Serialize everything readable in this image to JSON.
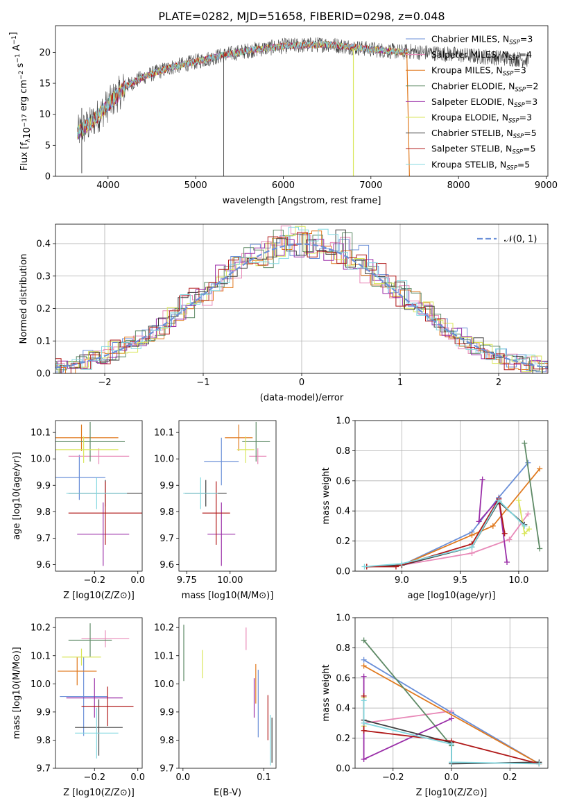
{
  "title": "PLATE=0282, MJD=51658, FIBERID=0298, z=0.048",
  "series": [
    {
      "name": "Chabrier MILES",
      "nssp": "3",
      "color": "#6a8fd8"
    },
    {
      "name": "Salpeter MILES",
      "nssp": "4",
      "color": "#e889b8"
    },
    {
      "name": "Kroupa MILES",
      "nssp": "3",
      "color": "#e0791e"
    },
    {
      "name": "Chabrier ELODIE",
      "nssp": "2",
      "color": "#5e8a66"
    },
    {
      "name": "Salpeter ELODIE",
      "nssp": "3",
      "color": "#9a2ea8"
    },
    {
      "name": "Kroupa ELODIE",
      "nssp": "3",
      "color": "#d9e65a"
    },
    {
      "name": "Chabrier STELIB",
      "nssp": "5",
      "color": "#3e3e3e"
    },
    {
      "name": "Salpeter STELIB",
      "nssp": "5",
      "color": "#b01818"
    },
    {
      "name": "Kroupa STELIB",
      "nssp": "5",
      "color": "#82d8e0"
    }
  ],
  "chart_data": [
    {
      "id": "spectrum",
      "type": "line",
      "title": "PLATE=0282, MJD=51658, FIBERID=0298, z=0.048",
      "xlabel": "wavelength [Angstrom, rest frame]",
      "ylabel": "Flux [f_λ 10^-17 erg cm^-2 s^-1 A^-1]",
      "xlim": [
        3400,
        9020
      ],
      "ylim": [
        0,
        24.3
      ],
      "xticks": [
        4000,
        5000,
        6000,
        7000,
        8000,
        9000
      ],
      "yticks": [
        0,
        5,
        10,
        15,
        20
      ],
      "continuum": {
        "x": [
          3650,
          3800,
          4000,
          4200,
          4400,
          4700,
          5000,
          5300,
          5600,
          6000,
          6500,
          7000,
          7400
        ],
        "y": [
          7.0,
          8.5,
          11.5,
          14.5,
          16.0,
          17.5,
          18.5,
          19.5,
          20.3,
          21.0,
          21.3,
          20.5,
          20.0
        ]
      },
      "legend": "upper right"
    },
    {
      "id": "residuals",
      "type": "line",
      "xlabel": "(data-model)/error",
      "ylabel": "Normed distribution",
      "xlim": [
        -2.5,
        2.5
      ],
      "ylim": [
        0,
        0.46
      ],
      "xticks": [
        -2,
        -1,
        0,
        1,
        2
      ],
      "yticks": [
        0.0,
        0.1,
        0.2,
        0.3,
        0.4
      ],
      "reference": {
        "name": "N(0,1)",
        "color": "#6a8fd8",
        "style": "dashed"
      },
      "grid": true,
      "legend": "upper right"
    },
    {
      "id": "age-vs-Z",
      "type": "scatter",
      "xlabel": "Z [log10(Z/Z⊙)]",
      "ylabel": "age [log10(age/yr)]",
      "xlim": [
        -0.38,
        0.02
      ],
      "ylim": [
        9.575,
        10.145
      ],
      "xticks": [
        -0.2,
        0.0
      ],
      "yticks": [
        9.6,
        9.7,
        9.8,
        9.9,
        10.0,
        10.1
      ],
      "points": [
        {
          "s": 0,
          "x": -0.27,
          "xerr": 0.12,
          "y": 9.93,
          "yerr": 0.085
        },
        {
          "s": 1,
          "x": -0.18,
          "xerr": 0.14,
          "y": 10.01,
          "yerr": 0.03
        },
        {
          "s": 2,
          "x": -0.26,
          "xerr": 0.17,
          "y": 10.08,
          "yerr": 0.05
        },
        {
          "s": 3,
          "x": -0.22,
          "xerr": 0.16,
          "y": 10.065,
          "yerr": 0.075
        },
        {
          "s": 4,
          "x": -0.16,
          "xerr": 0.12,
          "y": 9.715,
          "yerr": 0.12
        },
        {
          "s": 5,
          "x": -0.25,
          "xerr": 0.16,
          "y": 10.035,
          "yerr": 0.05
        },
        {
          "s": 6,
          "x": -0.15,
          "xerr": 0.17,
          "y": 9.87,
          "yerr": 0.05
        },
        {
          "s": 7,
          "x": -0.15,
          "xerr": 0.17,
          "y": 9.795,
          "yerr": 0.12
        },
        {
          "s": 8,
          "x": -0.19,
          "xerr": 0.14,
          "y": 9.87,
          "yerr": 0.06
        }
      ]
    },
    {
      "id": "age-vs-mass",
      "type": "scatter",
      "xlabel": "mass [log10(M/M⊙)]",
      "ylabel": "",
      "xlim": [
        9.705,
        10.265
      ],
      "ylim": [
        9.575,
        10.145
      ],
      "xticks": [
        9.75,
        10.0
      ],
      "yticks": [
        9.6,
        9.7,
        9.8,
        9.9,
        10.0,
        10.1
      ],
      "points": [
        {
          "s": 0,
          "x": 9.95,
          "xerr": 0.1,
          "y": 9.99,
          "yerr": 0.09
        },
        {
          "s": 1,
          "x": 10.16,
          "xerr": 0.05,
          "y": 10.01,
          "yerr": 0.03
        },
        {
          "s": 2,
          "x": 10.05,
          "xerr": 0.08,
          "y": 10.08,
          "yerr": 0.05
        },
        {
          "s": 3,
          "x": 10.15,
          "xerr": 0.08,
          "y": 10.065,
          "yerr": 0.075
        },
        {
          "s": 4,
          "x": 9.95,
          "xerr": 0.08,
          "y": 9.715,
          "yerr": 0.12
        },
        {
          "s": 5,
          "x": 10.09,
          "xerr": 0.05,
          "y": 10.035,
          "yerr": 0.05
        },
        {
          "s": 6,
          "x": 9.86,
          "xerr": 0.12,
          "y": 9.87,
          "yerr": 0.05
        },
        {
          "s": 7,
          "x": 9.92,
          "xerr": 0.08,
          "y": 9.795,
          "yerr": 0.12
        },
        {
          "s": 8,
          "x": 9.83,
          "xerr": 0.1,
          "y": 9.87,
          "yerr": 0.06
        }
      ]
    },
    {
      "id": "weight-vs-age",
      "type": "line",
      "xlabel": "age [log10(age/yr)]",
      "ylabel": "mass weight",
      "xlim": [
        8.6,
        10.25
      ],
      "ylim": [
        0,
        1.0
      ],
      "xticks": [
        9.0,
        9.5,
        10.0
      ],
      "yticks": [
        0.0,
        0.2,
        0.4,
        0.6,
        0.8,
        1.0
      ],
      "grid": true,
      "lines": [
        {
          "s": 0,
          "x": [
            8.7,
            9.0,
            9.6,
            9.83,
            10.08
          ],
          "y": [
            0.03,
            0.04,
            0.26,
            0.49,
            0.72
          ]
        },
        {
          "s": 1,
          "x": [
            8.7,
            9.0,
            9.6,
            9.92,
            10.08
          ],
          "y": [
            0.03,
            0.04,
            0.12,
            0.21,
            0.38
          ]
        },
        {
          "s": 2,
          "x": [
            8.7,
            9.0,
            9.6,
            9.78,
            10.18
          ],
          "y": [
            0.03,
            0.04,
            0.24,
            0.3,
            0.68
          ]
        },
        {
          "s": 3,
          "x": [
            10.05,
            10.18
          ],
          "y": [
            0.85,
            0.15
          ]
        },
        {
          "s": 4,
          "x": [
            9.69,
            9.66,
            9.83,
            9.9
          ],
          "y": [
            0.61,
            0.33,
            0.48,
            0.06
          ]
        },
        {
          "s": 5,
          "x": [
            10.0,
            10.05,
            10.09
          ],
          "y": [
            0.47,
            0.25,
            0.28
          ]
        },
        {
          "s": 6,
          "x": [
            8.7,
            9.0,
            9.6,
            9.83,
            10.05
          ],
          "y": [
            0.03,
            0.04,
            0.16,
            0.46,
            0.31
          ]
        },
        {
          "s": 7,
          "x": [
            8.7,
            8.95,
            9.6,
            9.83,
            9.88
          ],
          "y": [
            0.03,
            0.03,
            0.18,
            0.48,
            0.25
          ]
        },
        {
          "s": 8,
          "x": [
            8.68,
            9.0,
            9.6,
            9.83,
            10.05
          ],
          "y": [
            0.03,
            0.05,
            0.16,
            0.47,
            0.3
          ]
        }
      ]
    },
    {
      "id": "mass-vs-Z",
      "type": "scatter",
      "xlabel": "Z [log10(Z/Z⊙)]",
      "ylabel": "mass [log10(M/M⊙)]",
      "xlim": [
        -0.38,
        0.02
      ],
      "ylim": [
        9.7,
        10.235
      ],
      "xticks": [
        -0.2,
        0.0
      ],
      "yticks": [
        9.7,
        9.8,
        9.9,
        10.0,
        10.1,
        10.2
      ],
      "points": [
        {
          "s": 0,
          "x": -0.25,
          "xerr": 0.11,
          "y": 9.955,
          "yerr": 0.14
        },
        {
          "s": 1,
          "x": -0.15,
          "xerr": 0.11,
          "y": 10.16,
          "yerr": 0.03
        },
        {
          "s": 2,
          "x": -0.28,
          "xerr": 0.09,
          "y": 10.045,
          "yerr": 0.05
        },
        {
          "s": 3,
          "x": -0.22,
          "xerr": 0.1,
          "y": 10.155,
          "yerr": 0.06
        },
        {
          "s": 4,
          "x": -0.2,
          "xerr": 0.13,
          "y": 9.95,
          "yerr": 0.07
        },
        {
          "s": 5,
          "x": -0.26,
          "xerr": 0.09,
          "y": 10.095,
          "yerr": 0.03
        },
        {
          "s": 6,
          "x": -0.18,
          "xerr": 0.11,
          "y": 9.845,
          "yerr": 0.1
        },
        {
          "s": 7,
          "x": -0.14,
          "xerr": 0.12,
          "y": 9.92,
          "yerr": 0.07
        },
        {
          "s": 8,
          "x": -0.19,
          "xerr": 0.1,
          "y": 9.825,
          "yerr": 0.09
        }
      ]
    },
    {
      "id": "mass-vs-ebv",
      "type": "scatter",
      "xlabel": "E(B-V)",
      "ylabel": "",
      "xlim": [
        -0.005,
        0.115
      ],
      "ylim": [
        9.7,
        10.235
      ],
      "xticks": [
        0.0,
        0.1
      ],
      "yticks": [
        9.7,
        9.8,
        9.9,
        10.0,
        10.1,
        10.2
      ],
      "points": [
        {
          "s": 0,
          "x": 0.093,
          "xerr": 0,
          "y": 9.93,
          "yerr": 0.12
        },
        {
          "s": 1,
          "x": 0.078,
          "xerr": 0,
          "y": 10.16,
          "yerr": 0.04
        },
        {
          "s": 2,
          "x": 0.09,
          "xerr": 0,
          "y": 10.0,
          "yerr": 0.07
        },
        {
          "s": 3,
          "x": 0.001,
          "xerr": 0,
          "y": 10.11,
          "yerr": 0.1
        },
        {
          "s": 4,
          "x": 0.088,
          "xerr": 0,
          "y": 9.95,
          "yerr": 0.07
        },
        {
          "s": 5,
          "x": 0.024,
          "xerr": 0,
          "y": 10.07,
          "yerr": 0.05
        },
        {
          "s": 6,
          "x": 0.11,
          "xerr": 0,
          "y": 9.8,
          "yerr": 0.08
        },
        {
          "s": 7,
          "x": 0.105,
          "xerr": 0,
          "y": 9.88,
          "yerr": 0.08
        },
        {
          "s": 8,
          "x": 0.108,
          "xerr": 0,
          "y": 9.8,
          "yerr": 0.09
        }
      ]
    },
    {
      "id": "weight-vs-Z",
      "type": "line",
      "xlabel": "Z [log10(Z/Z⊙)]",
      "ylabel": "mass weight",
      "xlim": [
        -0.33,
        0.33
      ],
      "ylim": [
        0,
        1.0
      ],
      "xticks": [
        -0.2,
        0.0,
        0.2
      ],
      "yticks": [
        0.0,
        0.2,
        0.4,
        0.6,
        0.8,
        1.0
      ],
      "grid": true,
      "lines": [
        {
          "s": 0,
          "x": [
            -0.3,
            0.0,
            0.3
          ],
          "y": [
            0.72,
            0.37,
            0.03
          ]
        },
        {
          "s": 1,
          "x": [
            -0.3,
            0.0
          ],
          "y": [
            0.3,
            0.38
          ]
        },
        {
          "s": 2,
          "x": [
            -0.3,
            0.3
          ],
          "y": [
            0.68,
            0.03
          ]
        },
        {
          "s": 3,
          "x": [
            -0.3,
            0.0
          ],
          "y": [
            0.85,
            0.15
          ]
        },
        {
          "s": 4,
          "x": [
            -0.3,
            -0.3,
            0.0
          ],
          "y": [
            0.61,
            0.06,
            0.33
          ]
        },
        {
          "s": 5,
          "x": [
            -0.3,
            -0.3
          ],
          "y": [
            0.47,
            0.28
          ]
        },
        {
          "s": 6,
          "x": [
            -0.3,
            0.0,
            0.0,
            0.3
          ],
          "y": [
            0.32,
            0.17,
            0.03,
            0.04
          ]
        },
        {
          "s": 7,
          "x": [
            -0.3,
            -0.3,
            0.0,
            0.3
          ],
          "y": [
            0.48,
            0.25,
            0.18,
            0.03
          ]
        },
        {
          "s": 8,
          "x": [
            -0.3,
            -0.3,
            0.0,
            0.0,
            0.3
          ],
          "y": [
            0.45,
            0.3,
            0.16,
            0.04,
            0.03
          ]
        }
      ]
    }
  ]
}
